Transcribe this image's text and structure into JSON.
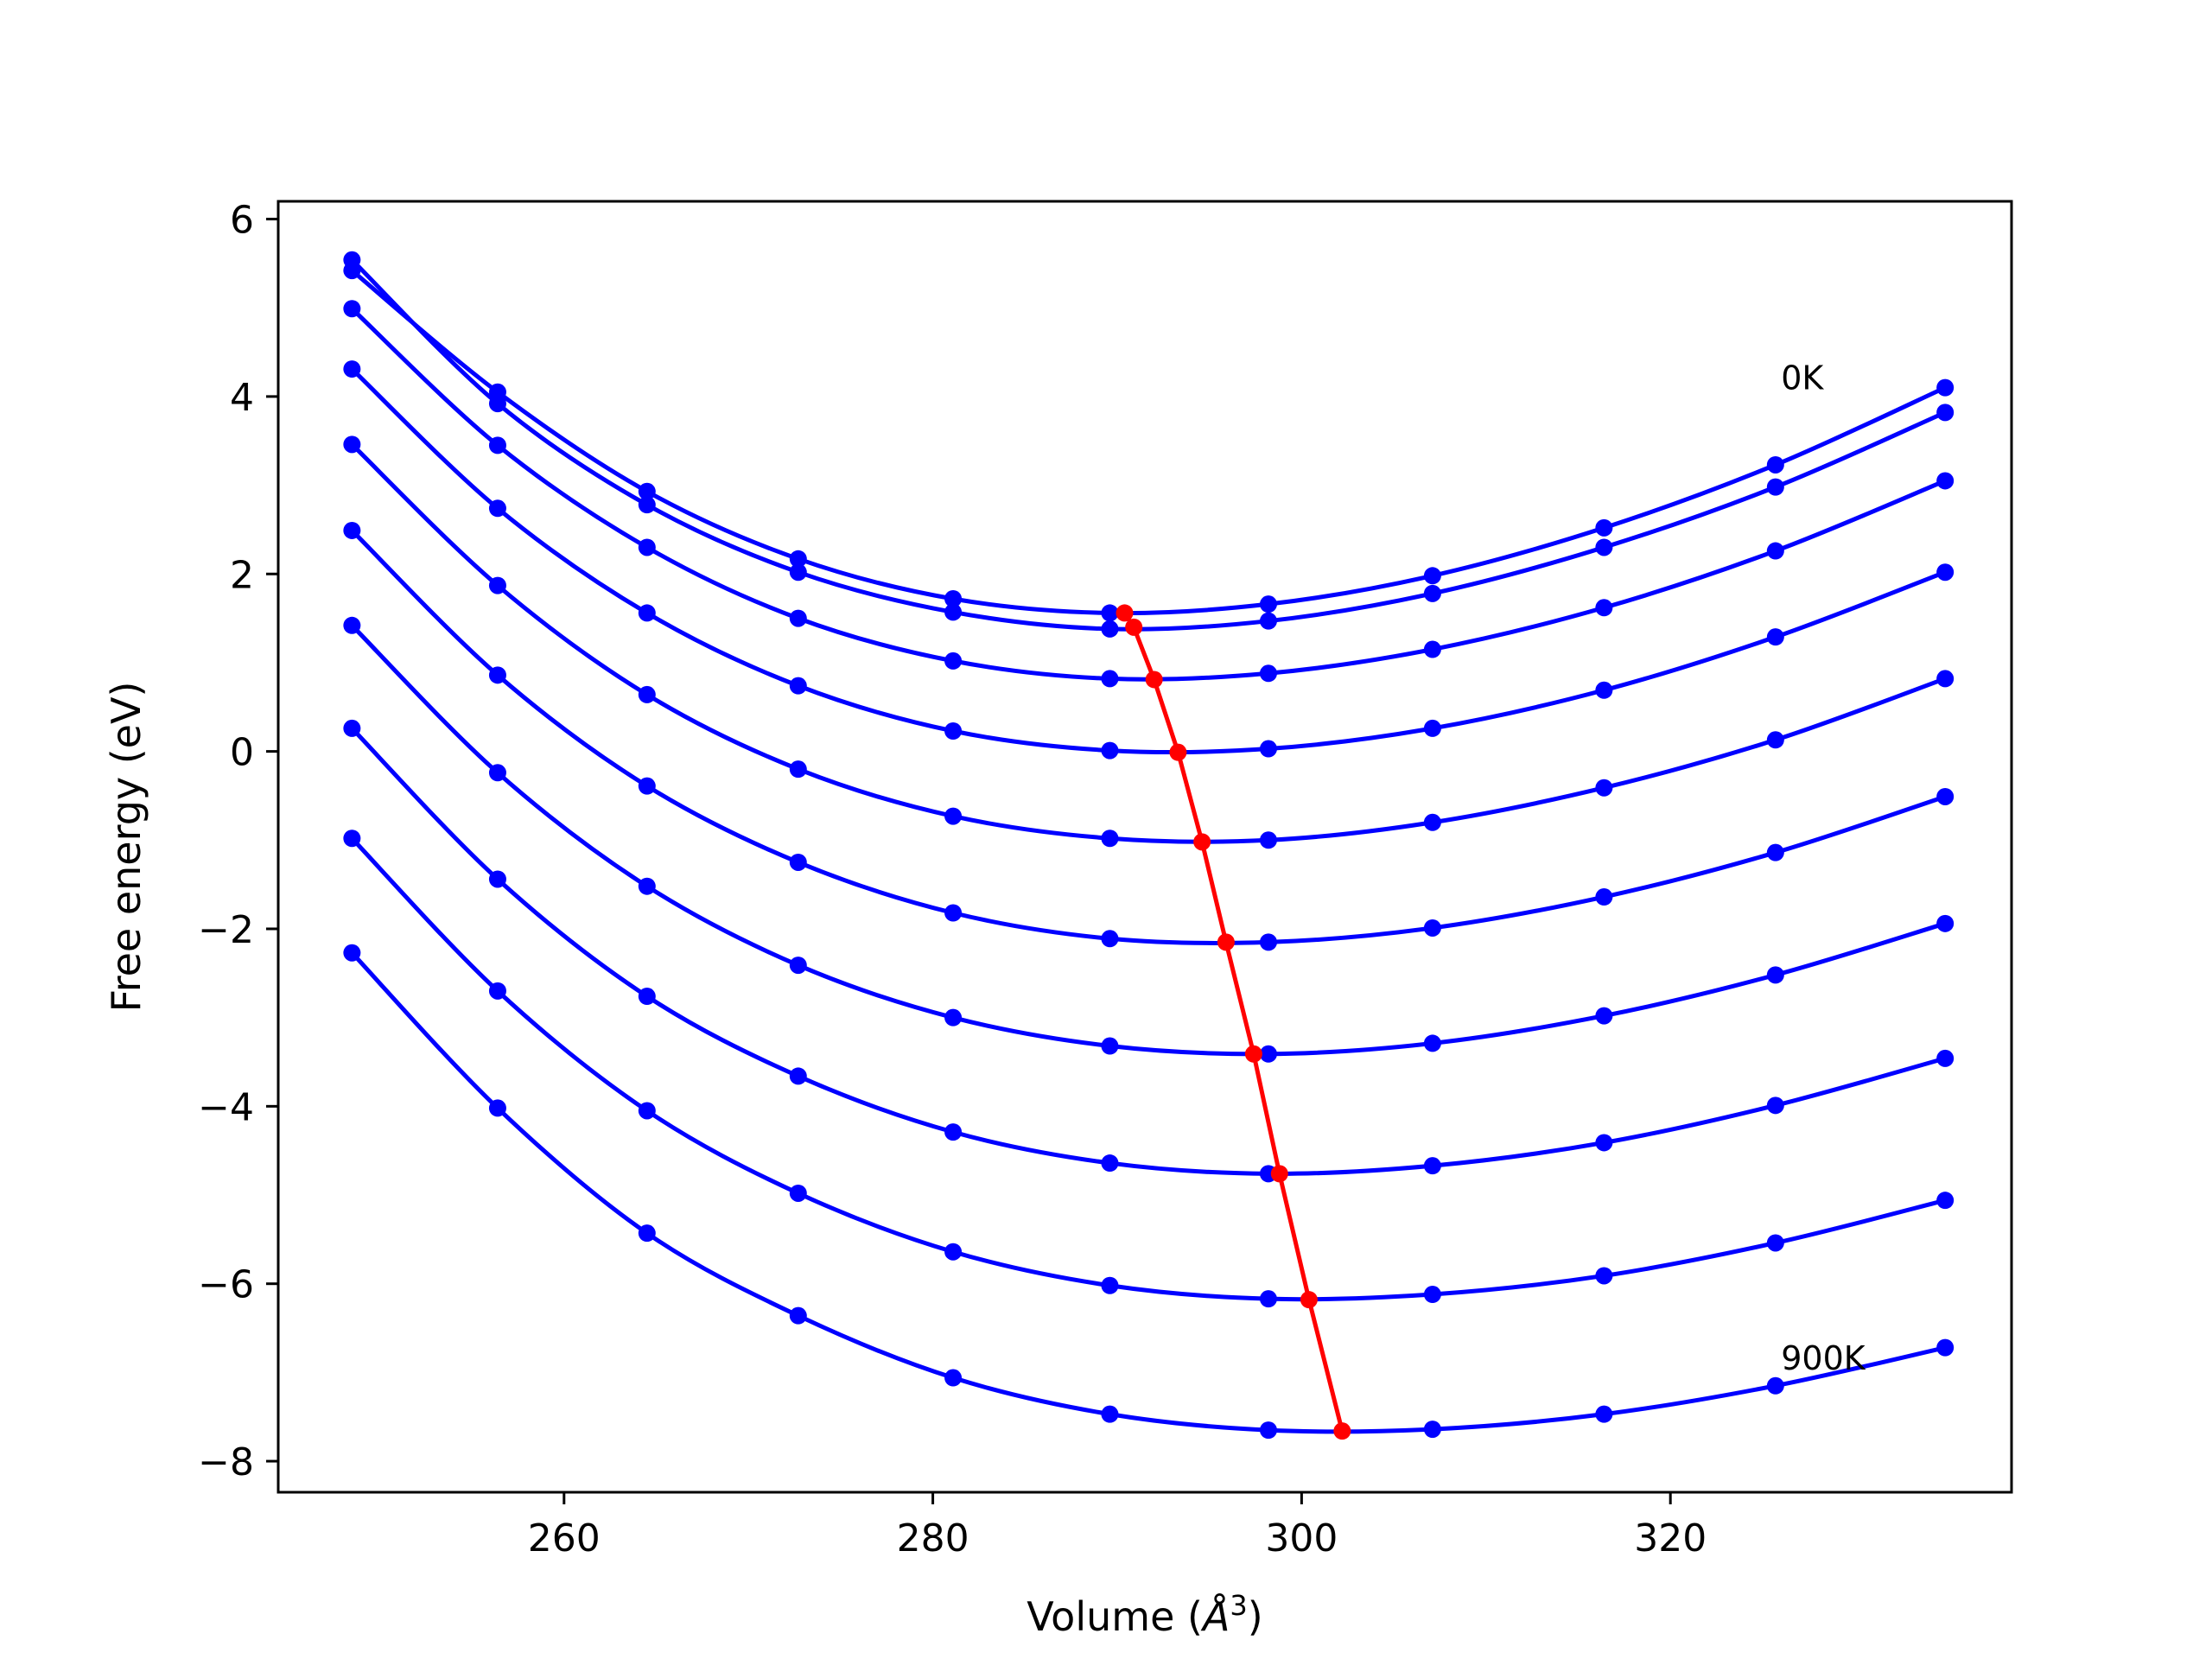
{
  "chart_data": {
    "type": "line",
    "xlabel": "Volume (Å³)",
    "xlabel_main": "Volume (",
    "xlabel_unit": "Å",
    "xlabel_sup": "3",
    "xlabel_close": ")",
    "ylabel": "Free energy (eV)",
    "xlim": [
      244.5,
      338.5
    ],
    "ylim": [
      -8.35,
      6.2
    ],
    "x_ticks": [
      260,
      280,
      300,
      320
    ],
    "x_tick_labels": [
      "260",
      "280",
      "300",
      "320"
    ],
    "y_ticks": [
      -8,
      -6,
      -4,
      -2,
      0,
      2,
      4,
      6
    ],
    "y_tick_labels": [
      "−8",
      "−6",
      "−4",
      "−2",
      "0",
      "2",
      "4",
      "6"
    ],
    "grid": false,
    "annotations": [
      {
        "text": "0K",
        "x": 326.0,
        "y": 4.2
      },
      {
        "text": "900K",
        "x": 326.0,
        "y": -6.85
      }
    ],
    "curve_color": "#0000ff",
    "min_color": "#ff0000",
    "x": [
      248.5,
      256.4,
      264.5,
      272.7,
      281.1,
      289.6,
      298.2,
      307.1,
      316.4,
      325.7,
      334.9
    ],
    "series": [
      {
        "values": [
          5.42,
          4.05,
          2.93,
          2.17,
          1.72,
          1.56,
          1.66,
          1.98,
          2.52,
          3.23,
          4.1
        ]
      },
      {
        "values": [
          5.54,
          3.92,
          2.78,
          2.02,
          1.57,
          1.38,
          1.47,
          1.78,
          2.3,
          2.98,
          3.82
        ]
      },
      {
        "values": [
          4.99,
          3.45,
          2.3,
          1.5,
          1.02,
          0.82,
          0.88,
          1.15,
          1.62,
          2.26,
          3.05
        ]
      },
      {
        "values": [
          4.31,
          2.74,
          1.56,
          0.74,
          0.23,
          0.01,
          0.03,
          0.26,
          0.69,
          1.29,
          2.02
        ]
      },
      {
        "values": [
          3.46,
          1.87,
          0.64,
          -0.2,
          -0.73,
          -0.98,
          -1.0,
          -0.8,
          -0.41,
          0.13,
          0.82
        ]
      },
      {
        "values": [
          2.49,
          0.86,
          -0.39,
          -1.25,
          -1.82,
          -2.11,
          -2.15,
          -1.99,
          -1.64,
          -1.14,
          -0.51
        ]
      },
      {
        "values": [
          1.42,
          -0.24,
          -1.52,
          -2.41,
          -3.0,
          -3.32,
          -3.41,
          -3.29,
          -2.98,
          -2.52,
          -1.94
        ]
      },
      {
        "values": [
          0.26,
          -1.44,
          -2.76,
          -3.66,
          -4.29,
          -4.64,
          -4.76,
          -4.67,
          -4.41,
          -3.99,
          -3.46
        ]
      },
      {
        "values": [
          -0.98,
          -2.7,
          -4.05,
          -4.98,
          -5.64,
          -6.02,
          -6.17,
          -6.12,
          -5.91,
          -5.54,
          -5.06
        ]
      },
      {
        "values": [
          -2.27,
          -4.02,
          -5.43,
          -6.36,
          -7.06,
          -7.47,
          -7.65,
          -7.64,
          -7.47,
          -7.15,
          -6.72
        ]
      }
    ],
    "minima": {
      "x": [
        290.4,
        290.9,
        292.0,
        293.3,
        294.6,
        295.9,
        297.4,
        298.8,
        300.4,
        302.2
      ],
      "y": [
        1.56,
        1.4,
        0.81,
        -0.01,
        -1.02,
        -2.15,
        -3.41,
        -4.76,
        -6.18,
        -7.66
      ]
    }
  }
}
